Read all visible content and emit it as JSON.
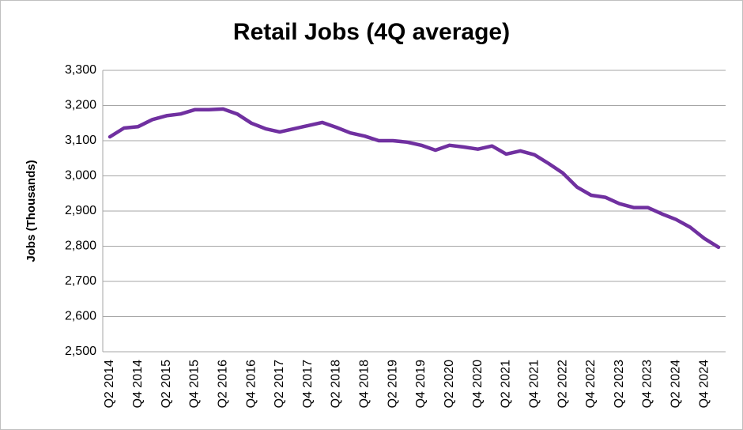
{
  "chart_data": {
    "type": "line",
    "title": "Retail Jobs (4Q average)",
    "y_label": "Jobs (Thousands)",
    "categories": [
      "Q2 2014",
      null,
      "Q4 2014",
      null,
      "Q2 2015",
      null,
      "Q4 2015",
      null,
      "Q2 2016",
      null,
      "Q4 2016",
      null,
      "Q2 2017",
      null,
      "Q4 2017",
      null,
      "Q2 2018",
      null,
      "Q4 2018",
      null,
      "Q2 2019",
      null,
      "Q4 2019",
      null,
      "Q2 2020",
      null,
      "Q4 2020",
      null,
      "Q2 2021",
      null,
      "Q4 2021",
      null,
      "Q2 2022",
      null,
      "Q4 2022",
      null,
      "Q2 2023",
      null,
      "Q4 2023",
      null,
      "Q2 2024",
      null,
      "Q4 2024",
      null
    ],
    "series": [
      {
        "name": "Retail Jobs",
        "color": "#7030a0",
        "values": [
          3111,
          3136,
          3140,
          3160,
          3171,
          3176,
          3188,
          3188,
          3190,
          3176,
          3150,
          3134,
          3125,
          3134,
          3143,
          3152,
          3138,
          3122,
          3113,
          3100,
          3100,
          3096,
          3087,
          3073,
          3087,
          3082,
          3076,
          3085,
          3062,
          3071,
          3060,
          3035,
          3008,
          2968,
          2945,
          2939,
          2921,
          2910,
          2910,
          2892,
          2876,
          2854,
          2822,
          2797
        ]
      }
    ],
    "ylim": [
      2500,
      3300
    ],
    "yticks": [
      {
        "value": 2500,
        "label": "2,500"
      },
      {
        "value": 2600,
        "label": "2,600"
      },
      {
        "value": 2700,
        "label": "2,700"
      },
      {
        "value": 2800,
        "label": "2,800"
      },
      {
        "value": 2900,
        "label": "2,900"
      },
      {
        "value": 3000,
        "label": "3,000"
      },
      {
        "value": 3100,
        "label": "3,100"
      },
      {
        "value": 3200,
        "label": "3,200"
      },
      {
        "value": 3300,
        "label": "3,300"
      }
    ],
    "grid": true
  }
}
